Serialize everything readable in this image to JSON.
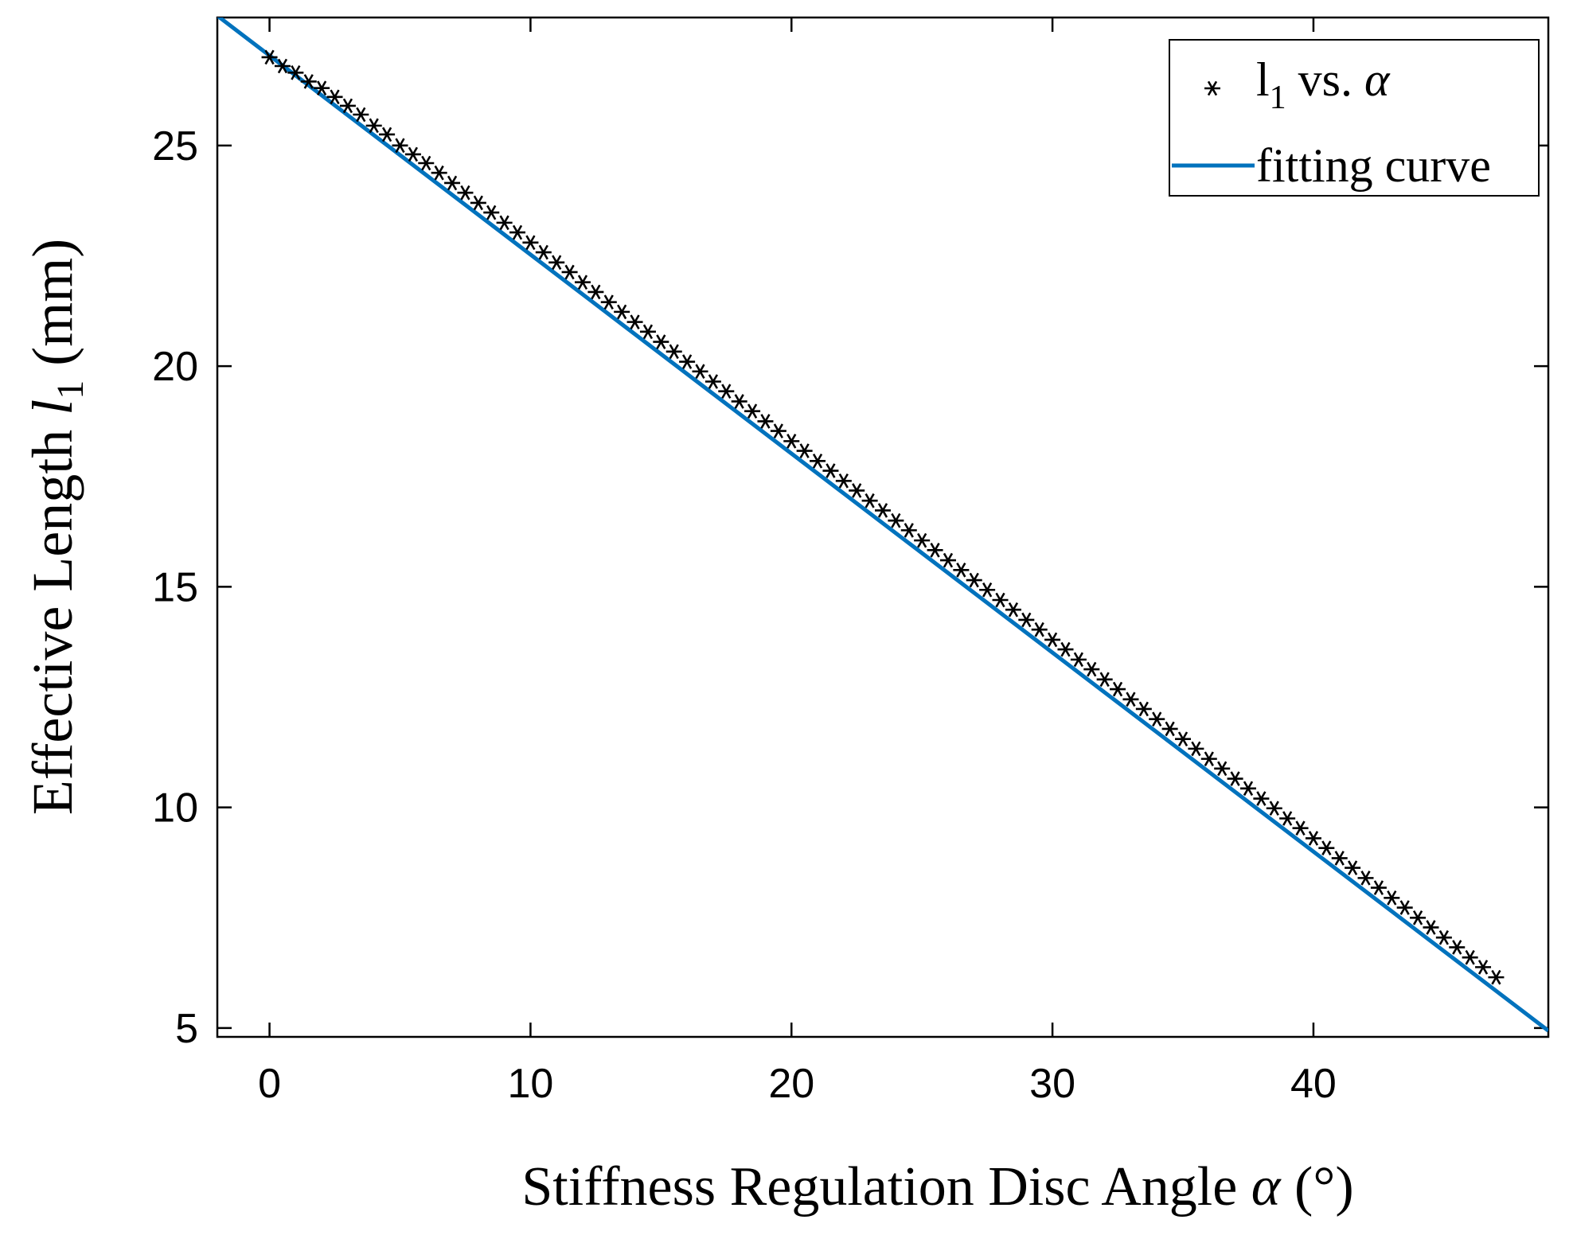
{
  "chart_data": {
    "type": "scatter",
    "title": "",
    "xlabel": "Stiffness Regulation Disc Angle",
    "xlabel_symbol": "α",
    "xlabel_unit": "(°)",
    "ylabel": "Effective Length",
    "ylabel_symbol": "l",
    "ylabel_subscript": "1",
    "ylabel_unit": "(mm)",
    "xlim": [
      -2,
      49
    ],
    "ylim": [
      4.8,
      27.9
    ],
    "xticks": [
      0,
      10,
      20,
      30,
      40
    ],
    "yticks": [
      5,
      10,
      15,
      20,
      25
    ],
    "grid": false,
    "legend_position": "top-right",
    "legend": [
      {
        "marker": "*",
        "text": "l",
        "subscript": "1",
        "text_after": " vs. ",
        "symbol": "α"
      },
      {
        "marker": "line",
        "text": "fitting curve"
      }
    ],
    "colors": {
      "points": "#000000",
      "fit": "#0072BD",
      "axis": "#000000",
      "background": "#ffffff"
    },
    "series": [
      {
        "name": "l1 vs. α",
        "kind": "scatter",
        "x": [
          0,
          0.5,
          1,
          1.5,
          2,
          2.5,
          3,
          3.5,
          4,
          4.5,
          5,
          5.5,
          6,
          6.5,
          7,
          7.5,
          8,
          8.5,
          9,
          9.5,
          10,
          10.5,
          11,
          11.5,
          12,
          12.5,
          13,
          13.5,
          14,
          14.5,
          15,
          15.5,
          16,
          16.5,
          17,
          17.5,
          18,
          18.5,
          19,
          19.5,
          20,
          20.5,
          21,
          21.5,
          22,
          22.5,
          23,
          23.5,
          24,
          24.5,
          25,
          25.5,
          26,
          26.5,
          27,
          27.5,
          28,
          28.5,
          29,
          29.5,
          30,
          30.5,
          31,
          31.5,
          32,
          32.5,
          33,
          33.5,
          34,
          34.5,
          35,
          35.5,
          36,
          36.5,
          37,
          37.5,
          38,
          38.5,
          39,
          39.5,
          40,
          40.5,
          41,
          41.5,
          42,
          42.5,
          43,
          43.5,
          44,
          44.5,
          45,
          45.5,
          46,
          46.5,
          47
        ],
        "y": [
          27.0,
          26.8,
          26.65,
          26.45,
          26.3,
          26.1,
          25.9,
          25.7,
          25.45,
          25.25,
          25.0,
          24.8,
          24.6,
          24.38,
          24.15,
          23.93,
          23.7,
          23.48,
          23.25,
          23.03,
          22.8,
          22.58,
          22.35,
          22.13,
          21.9,
          21.68,
          21.45,
          21.23,
          21.0,
          20.78,
          20.55,
          20.33,
          20.1,
          19.88,
          19.65,
          19.43,
          19.2,
          18.98,
          18.75,
          18.53,
          18.3,
          18.08,
          17.85,
          17.63,
          17.4,
          17.18,
          16.95,
          16.73,
          16.5,
          16.28,
          16.05,
          15.83,
          15.6,
          15.38,
          15.15,
          14.93,
          14.7,
          14.48,
          14.25,
          14.03,
          13.8,
          13.58,
          13.35,
          13.13,
          12.9,
          12.68,
          12.45,
          12.23,
          12.0,
          11.78,
          11.55,
          11.33,
          11.1,
          10.88,
          10.65,
          10.43,
          10.2,
          9.98,
          9.75,
          9.53,
          9.3,
          9.08,
          8.85,
          8.63,
          8.4,
          8.18,
          7.95,
          7.73,
          7.5,
          7.28,
          7.05,
          6.83,
          6.6,
          6.38,
          6.15
        ]
      },
      {
        "name": "fitting curve",
        "kind": "line",
        "x": [
          -2,
          49
        ],
        "y": [
          27.94,
          4.94
        ]
      }
    ]
  }
}
